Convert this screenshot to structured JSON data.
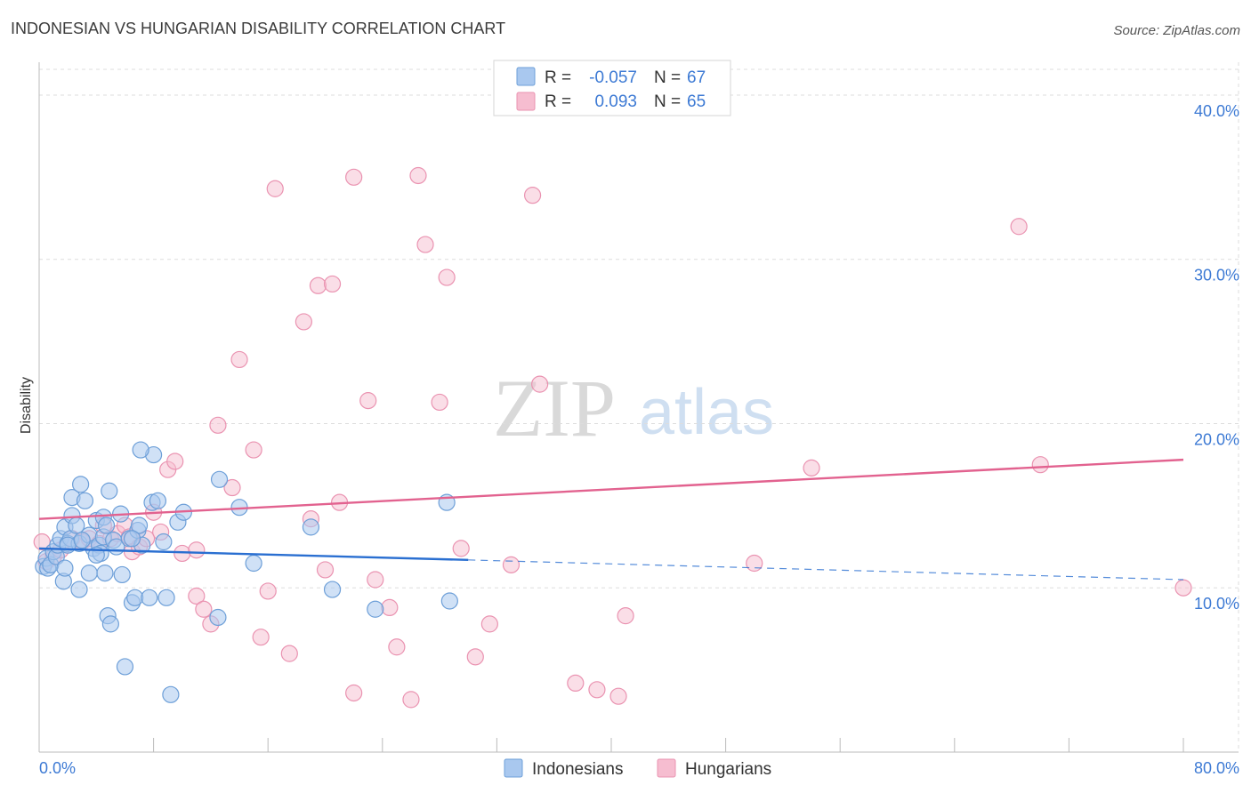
{
  "chart_data": {
    "type": "scatter",
    "title": "INDONESIAN VS HUNGARIAN DISABILITY CORRELATION CHART",
    "source": "Source: ZipAtlas.com",
    "ylabel": "Disability",
    "xlabel": "",
    "xlim": [
      0,
      80
    ],
    "ylim": [
      0,
      42
    ],
    "x_tick_labels": [
      "0.0%",
      "80.0%"
    ],
    "y_ticks": [
      10,
      20,
      30,
      40
    ],
    "y_tick_labels": [
      "10.0%",
      "20.0%",
      "30.0%",
      "40.0%"
    ],
    "grid": true,
    "watermark": {
      "zip": "ZIP",
      "atlas": "atlas"
    },
    "colors": {
      "indonesians_fill": "#a9c8ef",
      "indonesians_stroke": "#6d9fd8",
      "indonesians_line": "#2a6fd1",
      "hungarians_fill": "#f6bdd0",
      "hungarians_stroke": "#ea93b1",
      "hungarians_line": "#e2628f",
      "blue_text": "#3d7ad4",
      "grid": "#dddddd"
    },
    "legend": {
      "position": "top-center",
      "rows": [
        {
          "r_label": "R =",
          "r_value": "-0.057",
          "n_label": "N =",
          "n_value": "67"
        },
        {
          "r_label": "R =",
          "r_value": "0.093",
          "n_label": "N =",
          "n_value": "65"
        }
      ]
    },
    "bottom_legend": [
      "Indonesians",
      "Hungarians"
    ],
    "series": [
      {
        "name": "Indonesians",
        "points": [
          [
            0.3,
            11.3
          ],
          [
            0.5,
            11.8
          ],
          [
            0.6,
            11.2
          ],
          [
            0.8,
            11.4
          ],
          [
            1.0,
            12.2
          ],
          [
            1.2,
            11.9
          ],
          [
            1.3,
            12.6
          ],
          [
            1.5,
            13.0
          ],
          [
            1.7,
            10.4
          ],
          [
            1.8,
            11.2
          ],
          [
            1.8,
            13.7
          ],
          [
            2.0,
            12.7
          ],
          [
            2.2,
            13.0
          ],
          [
            2.3,
            14.4
          ],
          [
            2.3,
            15.5
          ],
          [
            2.6,
            13.8
          ],
          [
            2.8,
            12.7
          ],
          [
            2.8,
            9.9
          ],
          [
            2.9,
            16.3
          ],
          [
            3.2,
            15.3
          ],
          [
            3.5,
            10.9
          ],
          [
            3.5,
            13.2
          ],
          [
            3.8,
            12.4
          ],
          [
            4.0,
            14.1
          ],
          [
            4.2,
            12.6
          ],
          [
            4.3,
            12.1
          ],
          [
            4.5,
            14.3
          ],
          [
            4.5,
            13.1
          ],
          [
            4.6,
            10.9
          ],
          [
            4.7,
            13.8
          ],
          [
            4.8,
            8.3
          ],
          [
            4.9,
            15.9
          ],
          [
            5.0,
            7.8
          ],
          [
            5.2,
            12.9
          ],
          [
            5.4,
            12.5
          ],
          [
            5.7,
            14.5
          ],
          [
            5.8,
            10.8
          ],
          [
            6.0,
            5.2
          ],
          [
            6.3,
            13.0
          ],
          [
            6.5,
            9.1
          ],
          [
            6.7,
            9.4
          ],
          [
            6.9,
            13.5
          ],
          [
            7.0,
            13.8
          ],
          [
            7.2,
            12.6
          ],
          [
            7.7,
            9.4
          ],
          [
            7.9,
            15.2
          ],
          [
            8.0,
            18.1
          ],
          [
            8.3,
            15.3
          ],
          [
            8.7,
            12.8
          ],
          [
            8.9,
            9.4
          ],
          [
            9.2,
            3.5
          ],
          [
            9.7,
            14.0
          ],
          [
            10.1,
            14.6
          ],
          [
            12.5,
            8.2
          ],
          [
            12.6,
            16.6
          ],
          [
            14.0,
            14.9
          ],
          [
            15.0,
            11.5
          ],
          [
            19.0,
            13.7
          ],
          [
            20.5,
            9.9
          ],
          [
            23.5,
            8.7
          ],
          [
            28.5,
            15.2
          ],
          [
            28.7,
            9.2
          ],
          [
            7.1,
            18.4
          ],
          [
            4.0,
            12.0
          ],
          [
            2.0,
            12.6
          ],
          [
            6.5,
            13.0
          ],
          [
            3.0,
            12.9
          ]
        ],
        "trend_solid": [
          [
            0,
            12.4
          ],
          [
            30,
            11.7
          ]
        ],
        "trend_dashed": [
          [
            30,
            11.7
          ],
          [
            80,
            10.5
          ]
        ]
      },
      {
        "name": "Hungarians",
        "points": [
          [
            0.2,
            12.8
          ],
          [
            0.5,
            11.6
          ],
          [
            1.0,
            11.9
          ],
          [
            1.5,
            12.3
          ],
          [
            2.3,
            13.0
          ],
          [
            3.0,
            12.8
          ],
          [
            3.5,
            13.0
          ],
          [
            4.2,
            12.7
          ],
          [
            4.5,
            13.8
          ],
          [
            5.0,
            13.0
          ],
          [
            5.5,
            13.3
          ],
          [
            6.0,
            13.8
          ],
          [
            6.3,
            13.1
          ],
          [
            6.5,
            12.2
          ],
          [
            7.0,
            12.5
          ],
          [
            7.5,
            13.0
          ],
          [
            8.0,
            14.6
          ],
          [
            8.5,
            13.4
          ],
          [
            9.0,
            17.2
          ],
          [
            9.5,
            17.7
          ],
          [
            10.0,
            12.1
          ],
          [
            11.0,
            12.3
          ],
          [
            11.0,
            9.5
          ],
          [
            11.5,
            8.7
          ],
          [
            12.0,
            7.8
          ],
          [
            12.5,
            19.9
          ],
          [
            13.5,
            16.1
          ],
          [
            14.0,
            23.9
          ],
          [
            15.0,
            18.4
          ],
          [
            15.5,
            7.0
          ],
          [
            16.0,
            9.8
          ],
          [
            16.5,
            34.3
          ],
          [
            17.5,
            6.0
          ],
          [
            18.5,
            26.2
          ],
          [
            19.0,
            14.2
          ],
          [
            19.5,
            28.4
          ],
          [
            20.0,
            11.1
          ],
          [
            20.5,
            28.5
          ],
          [
            21.0,
            15.2
          ],
          [
            22.0,
            35.0
          ],
          [
            22.0,
            3.6
          ],
          [
            23.0,
            21.4
          ],
          [
            23.5,
            10.5
          ],
          [
            24.5,
            8.8
          ],
          [
            25.0,
            6.4
          ],
          [
            26.0,
            3.2
          ],
          [
            26.5,
            35.1
          ],
          [
            27.0,
            30.9
          ],
          [
            28.0,
            21.3
          ],
          [
            28.5,
            28.9
          ],
          [
            29.5,
            12.4
          ],
          [
            30.5,
            5.8
          ],
          [
            31.5,
            7.8
          ],
          [
            33.0,
            11.4
          ],
          [
            34.5,
            33.9
          ],
          [
            35.0,
            22.4
          ],
          [
            37.5,
            4.2
          ],
          [
            39.0,
            3.8
          ],
          [
            40.5,
            3.4
          ],
          [
            41.0,
            8.3
          ],
          [
            50.0,
            11.5
          ],
          [
            54.0,
            17.3
          ],
          [
            68.5,
            32.0
          ],
          [
            70.0,
            17.5
          ],
          [
            80.0,
            10.0
          ]
        ],
        "trend_solid": [
          [
            0,
            14.2
          ],
          [
            80,
            17.8
          ]
        ]
      }
    ]
  }
}
